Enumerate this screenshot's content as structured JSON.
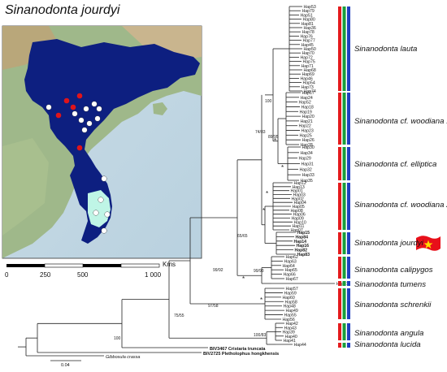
{
  "title": "Sinanodonta jourdyi",
  "map": {
    "scale_unit": "Kms",
    "scale_ticks": [
      "0",
      "250",
      "500",
      "1 000"
    ]
  },
  "clades": [
    {
      "id": "lauta",
      "label": "Sinanodonta lauta"
    },
    {
      "id": "woodiana1",
      "label": "Sinanodonta cf. woodiana 1"
    },
    {
      "id": "elliptica",
      "label": "Sinanodonta cf. elliptica"
    },
    {
      "id": "woodiana2",
      "label": "Sinanodonta cf. woodiana 2"
    },
    {
      "id": "jourdyi",
      "label": "Sinanodonta jourdyi"
    },
    {
      "id": "calipygos",
      "label": "Sinanodonta calipygos"
    },
    {
      "id": "tumens",
      "label": "Sinanodonta tumens"
    },
    {
      "id": "schrenkii",
      "label": "Sinanodonta schrenkii"
    },
    {
      "id": "angula",
      "label": "Sinanodonta angula"
    },
    {
      "id": "lucida",
      "label": "Sinanodonta lucida"
    }
  ],
  "tree": {
    "scale_bar_label": "0.04",
    "support_values": [
      "100",
      "74/83",
      "89/95",
      "65/65",
      "99/92",
      "99/93",
      "97/58",
      "75/55",
      "100",
      "100/83"
    ],
    "outgroups": [
      {
        "label": "BIV3467 Cristaria truncata",
        "style": "bold"
      },
      {
        "label": "BIV2725 Pletholophus hongkhensis",
        "style": "bold"
      },
      {
        "label": "Gibbosula crassa",
        "style": "ital"
      }
    ],
    "lauta_tips": [
      "Hap53",
      "Hap79",
      "Hap51",
      "Hap80",
      "Hap81",
      "Hap36",
      "Hap78",
      "Hap76",
      "Hap77",
      "Hap45",
      "Hap50",
      "Hap70",
      "Hap72",
      "Hap75",
      "Hap71",
      "Hap68",
      "Hap69",
      "Hap46",
      "Hap54",
      "Hap73",
      "Hap74"
    ],
    "woodiana1_tips": [
      "Hap17",
      "Hap24",
      "Hap52",
      "Hap18",
      "Hap19",
      "Hap20",
      "Hap21",
      "Hap22",
      "Hap23",
      "Hap25",
      "Hap26",
      "Hap28"
    ],
    "elliptica_tips": [
      "Hap30",
      "Hap34",
      "Hap29",
      "Hap31",
      "Hap32",
      "Hap33",
      "Hap35"
    ],
    "woodiana2_tips": [
      "Hap12",
      "Hap13",
      "Hap01",
      "Hap03",
      "Hap02",
      "Hap04",
      "Hap05",
      "Hap08",
      "Hap06",
      "Hap09",
      "Hap10",
      "Hap11",
      "Hap07"
    ],
    "jourdyi_tips": [
      "Hap15",
      "Hap84",
      "Hap14",
      "Hap16",
      "Hap82",
      "Hap83"
    ],
    "calipygos_tips": [
      "Hap62",
      "Hap63",
      "Hap64",
      "Hap65",
      "Hap66",
      "Hap67"
    ],
    "tumens_tips": [
      "Hap61"
    ],
    "schrenkii_tips": [
      "Hap57",
      "Hap59",
      "Hap60",
      "Hap58",
      "Hap48",
      "Hap49",
      "Hap55",
      "Hap56"
    ],
    "angula_tips": [
      "Hap42",
      "Hap43",
      "Hap39",
      "Hap40",
      "Hap41"
    ],
    "lucida_tips": [
      "Hap44"
    ]
  },
  "colors": {
    "bar_red": "#e41a1c",
    "bar_green": "#1a9e3a",
    "bar_blue": "#1f3fbf",
    "map_range": "#0d1f80",
    "highlight_range": "#bff5e6",
    "site_red": "#e0141a",
    "site_white": "#ffffff",
    "flag_red": "#e8101a",
    "flag_star": "#ffdd00"
  }
}
